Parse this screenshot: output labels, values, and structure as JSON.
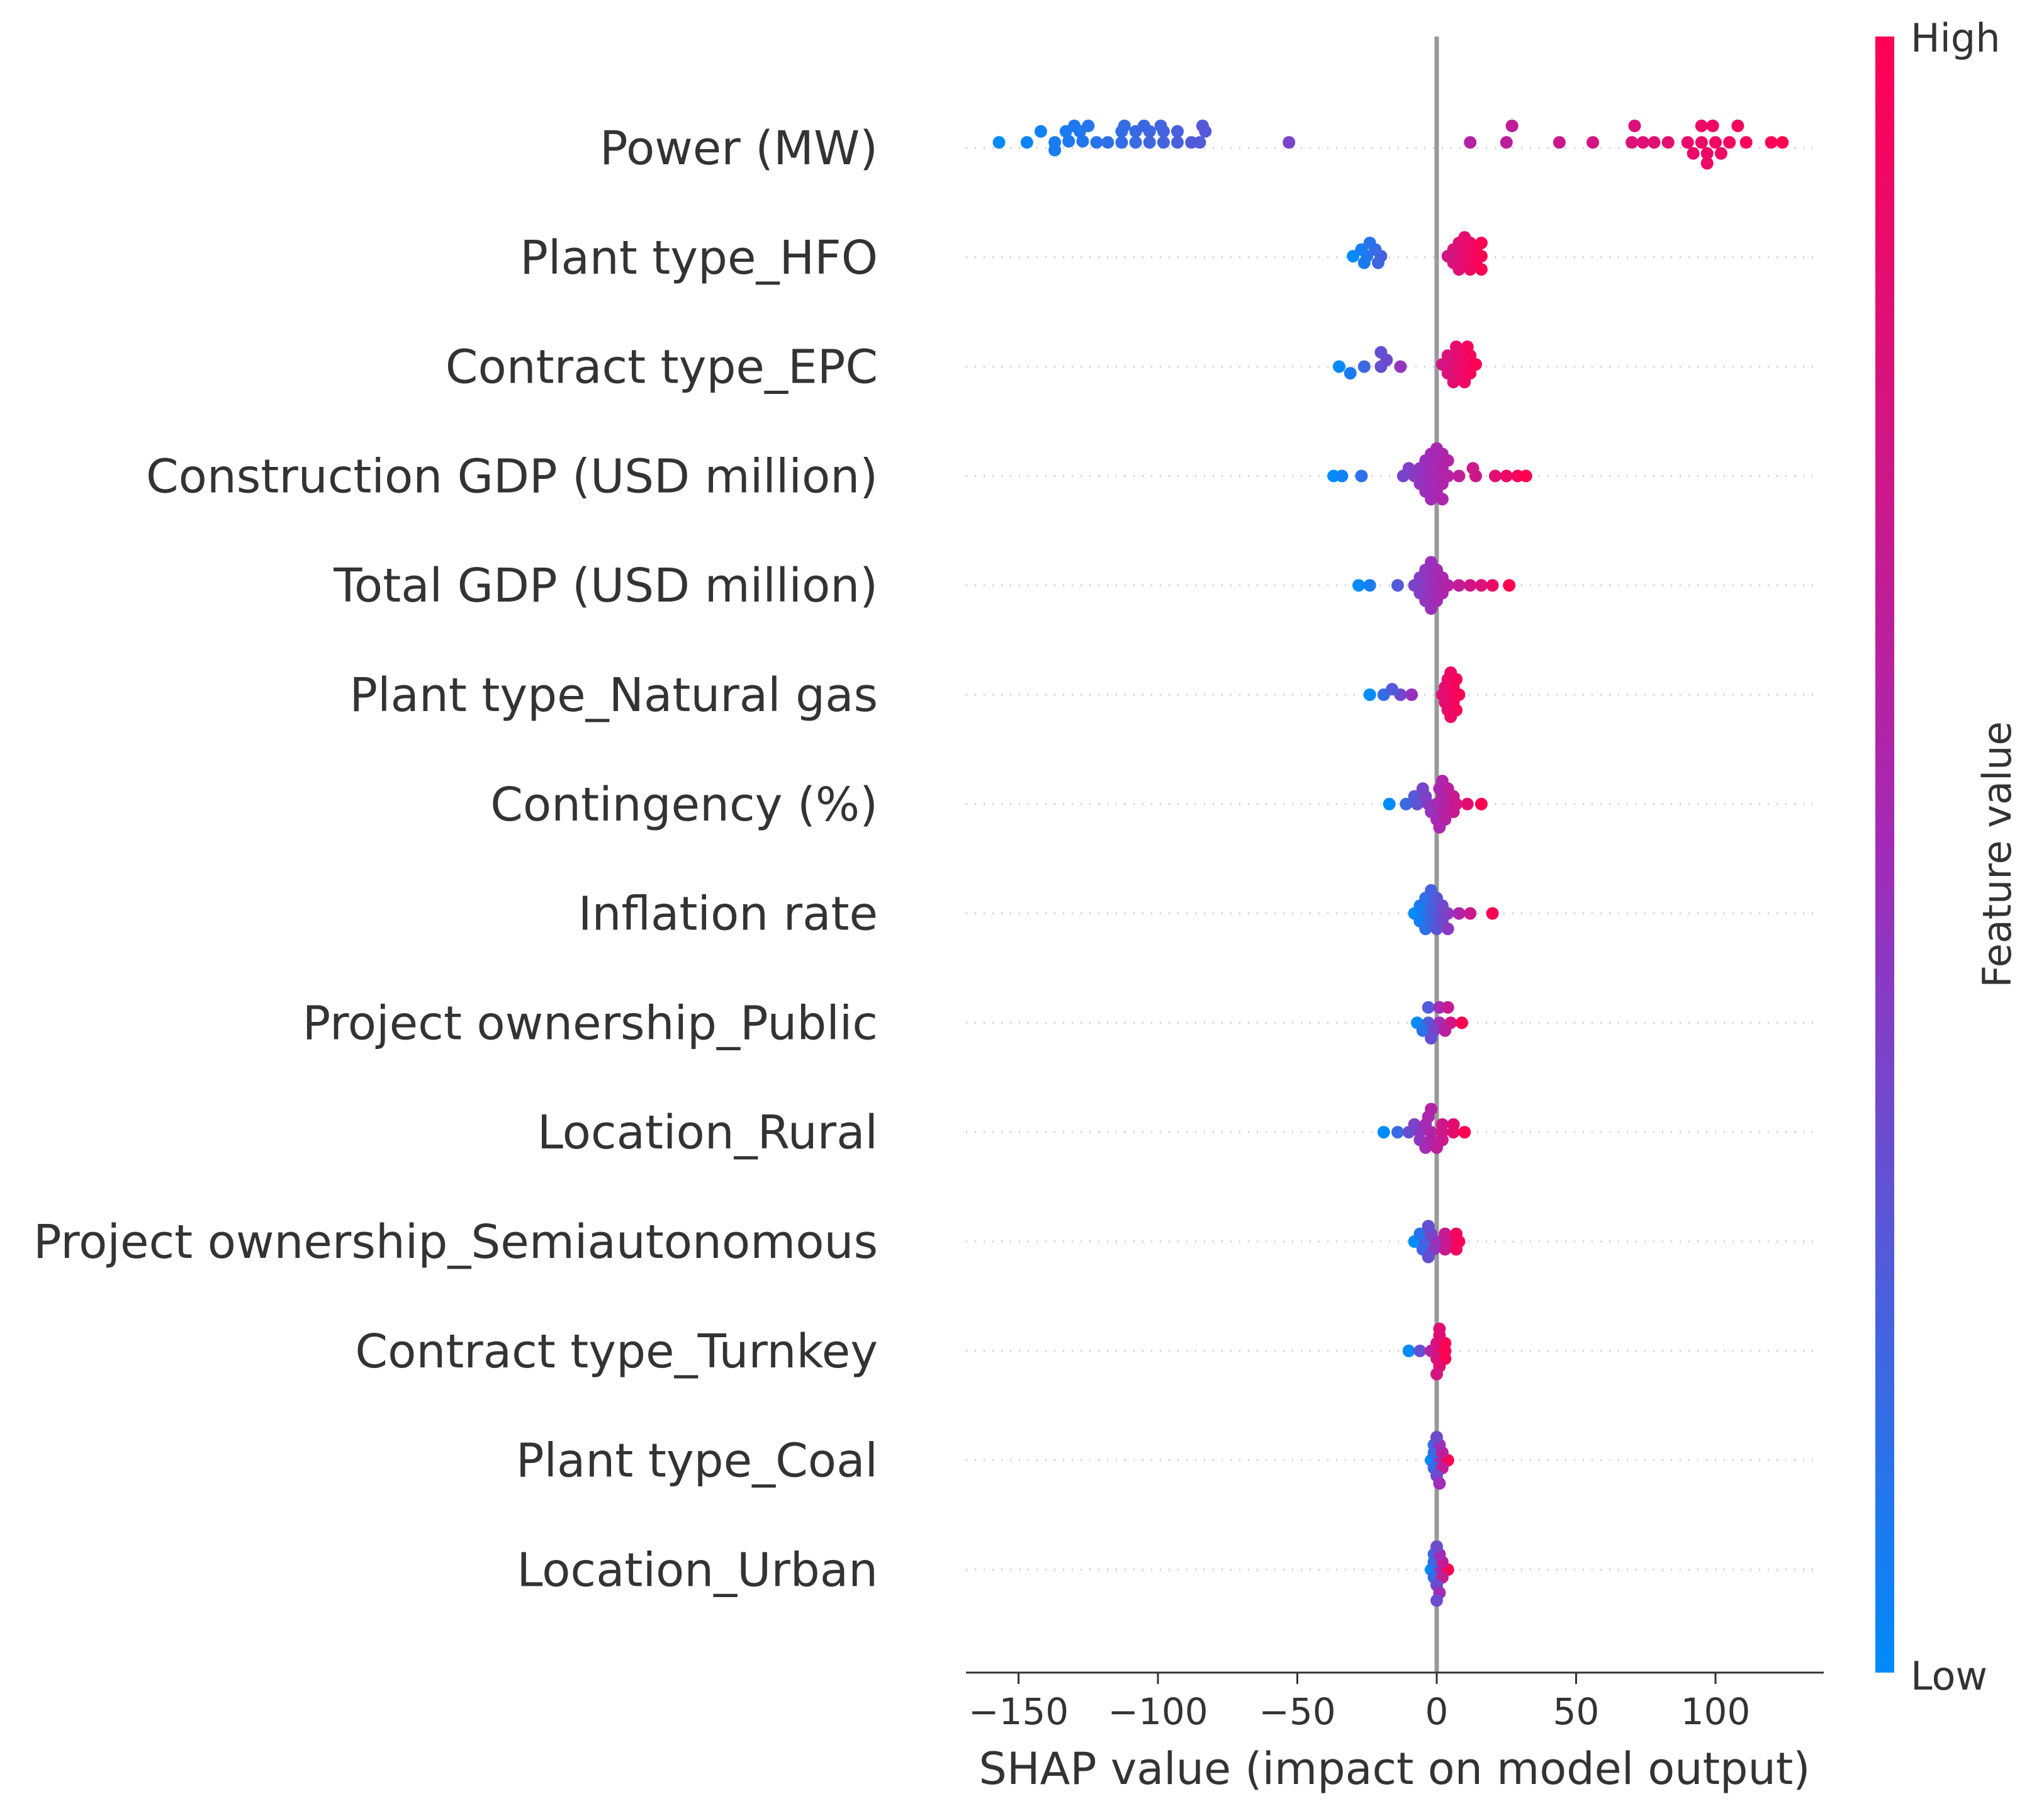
{
  "chart_data": {
    "type": "scatter",
    "subtype": "shap-beeswarm",
    "title": "",
    "xlabel": "SHAP value (impact on model output)",
    "ylabel": "",
    "xlim": [
      -170,
      140
    ],
    "xticks": [
      {
        "value": -150,
        "label": "−150"
      },
      {
        "value": -100,
        "label": "−100"
      },
      {
        "value": -50,
        "label": "−50"
      },
      {
        "value": 0,
        "label": "0"
      },
      {
        "value": 50,
        "label": "50"
      },
      {
        "value": 100,
        "label": "100"
      }
    ],
    "grid": false,
    "colorbar": {
      "title": "Feature value",
      "high_label": "High",
      "low_label": "Low",
      "low_color": "#008bfb",
      "high_color": "#ff0052",
      "mid_color": "#a22bb8"
    },
    "features": [
      {
        "name": "Power (MW)",
        "points": [
          [
            -157,
            0.05
          ],
          [
            -147,
            0.05
          ],
          [
            -137,
            0.05
          ],
          [
            -137,
            -0.02
          ],
          [
            -132,
            0.06
          ],
          [
            -127,
            0.06
          ],
          [
            -122,
            0.05
          ],
          [
            -118,
            0.05
          ],
          [
            -113,
            0.05
          ],
          [
            -108,
            0.05
          ],
          [
            -103,
            0.05
          ],
          [
            -98,
            0.05
          ],
          [
            -93,
            0.05
          ],
          [
            -88,
            0.05
          ],
          [
            -85,
            0.05
          ],
          [
            -142,
            0.15
          ],
          [
            -133,
            0.15
          ],
          [
            -128,
            0.15
          ],
          [
            -113,
            0.15
          ],
          [
            -108,
            0.15
          ],
          [
            -103,
            0.15
          ],
          [
            -98,
            0.15
          ],
          [
            -93,
            0.15
          ],
          [
            -83,
            0.15
          ],
          [
            -130,
            0.2
          ],
          [
            -125,
            0.2
          ],
          [
            -112,
            0.2
          ],
          [
            -105,
            0.2
          ],
          [
            -99,
            0.2
          ],
          [
            -84,
            0.2
          ],
          [
            -53,
            0.05
          ],
          [
            12,
            0.05
          ],
          [
            25,
            0.05
          ],
          [
            27,
            0.2
          ],
          [
            44,
            0.05
          ],
          [
            56,
            0.05
          ],
          [
            70,
            0.05
          ],
          [
            74,
            0.05
          ],
          [
            78,
            0.05
          ],
          [
            83,
            0.05
          ],
          [
            90,
            0.05
          ],
          [
            95,
            0.05
          ],
          [
            100,
            0.05
          ],
          [
            105,
            0.05
          ],
          [
            111,
            0.05
          ],
          [
            120,
            0.05
          ],
          [
            124,
            0.05
          ],
          [
            71,
            0.2
          ],
          [
            95,
            0.2
          ],
          [
            99,
            0.2
          ],
          [
            108,
            0.2
          ],
          [
            92,
            -0.05
          ],
          [
            97,
            -0.05
          ],
          [
            102,
            -0.05
          ],
          [
            97,
            -0.14
          ]
        ]
      },
      {
        "name": "Plant type_HFO",
        "points": [
          [
            -30,
            0.01
          ],
          [
            -25,
            0.01
          ],
          [
            -20,
            0.01
          ],
          [
            -27,
            0.07
          ],
          [
            -22,
            0.07
          ],
          [
            -24,
            0.13
          ],
          [
            -26,
            -0.05
          ],
          [
            -21,
            -0.05
          ],
          [
            4,
            0.01
          ],
          [
            8,
            0.01
          ],
          [
            12,
            0.01
          ],
          [
            16,
            0.01
          ],
          [
            6,
            0.07
          ],
          [
            10,
            0.07
          ],
          [
            14,
            0.07
          ],
          [
            8,
            0.13
          ],
          [
            12,
            0.13
          ],
          [
            16,
            0.13
          ],
          [
            6,
            -0.05
          ],
          [
            10,
            -0.05
          ],
          [
            14,
            -0.05
          ],
          [
            8,
            -0.11
          ],
          [
            12,
            -0.11
          ],
          [
            16,
            -0.11
          ],
          [
            10,
            0.18
          ]
        ]
      },
      {
        "name": "Contract type_EPC",
        "points": [
          [
            -35,
            0.0
          ],
          [
            -26,
            0.0
          ],
          [
            -20,
            0.0
          ],
          [
            -13,
            0.0
          ],
          [
            -18,
            0.06
          ],
          [
            -20,
            0.13
          ],
          [
            -31,
            -0.06
          ],
          [
            2,
            0.02
          ],
          [
            6,
            0.02
          ],
          [
            10,
            0.02
          ],
          [
            14,
            0.02
          ],
          [
            4,
            0.1
          ],
          [
            8,
            0.1
          ],
          [
            12,
            0.1
          ],
          [
            7,
            0.18
          ],
          [
            11,
            0.18
          ],
          [
            4,
            -0.06
          ],
          [
            8,
            -0.06
          ],
          [
            12,
            -0.06
          ],
          [
            6,
            -0.14
          ],
          [
            10,
            -0.14
          ]
        ]
      },
      {
        "name": "Construction GDP (USD million)",
        "points": [
          [
            -37,
            0.0
          ],
          [
            -34,
            0.0
          ],
          [
            -27,
            0.0
          ],
          [
            -12,
            0.0
          ],
          [
            -8,
            0.0
          ],
          [
            -4,
            0.0
          ],
          [
            0,
            0.0
          ],
          [
            4,
            0.0
          ],
          [
            8,
            0.0
          ],
          [
            14,
            0.0
          ],
          [
            21,
            0.0
          ],
          [
            25,
            0.0
          ],
          [
            29,
            0.0
          ],
          [
            32,
            0.0
          ],
          [
            -10,
            0.07
          ],
          [
            -6,
            0.07
          ],
          [
            -2,
            0.07
          ],
          [
            2,
            0.07
          ],
          [
            13,
            0.07
          ],
          [
            -4,
            0.14
          ],
          [
            0,
            0.14
          ],
          [
            4,
            0.14
          ],
          [
            -2,
            0.2
          ],
          [
            2,
            0.2
          ],
          [
            -6,
            -0.07
          ],
          [
            -2,
            -0.07
          ],
          [
            2,
            -0.07
          ],
          [
            -4,
            -0.14
          ],
          [
            0,
            -0.14
          ],
          [
            -2,
            -0.21
          ],
          [
            2,
            -0.21
          ],
          [
            0,
            0.25
          ]
        ]
      },
      {
        "name": "Total GDP (USD million)",
        "points": [
          [
            -28,
            0.0
          ],
          [
            -24,
            0.0
          ],
          [
            -14,
            0.0
          ],
          [
            -8,
            0.0
          ],
          [
            -4,
            0.0
          ],
          [
            0,
            0.0
          ],
          [
            4,
            0.0
          ],
          [
            8,
            0.0
          ],
          [
            12,
            0.0
          ],
          [
            16,
            0.0
          ],
          [
            20,
            0.0
          ],
          [
            26,
            0.0
          ],
          [
            -6,
            0.07
          ],
          [
            -2,
            0.07
          ],
          [
            2,
            0.07
          ],
          [
            -4,
            0.14
          ],
          [
            0,
            0.14
          ],
          [
            -2,
            0.21
          ],
          [
            -6,
            -0.07
          ],
          [
            -2,
            -0.07
          ],
          [
            2,
            -0.07
          ],
          [
            -4,
            -0.14
          ],
          [
            0,
            -0.14
          ],
          [
            -2,
            -0.21
          ]
        ]
      },
      {
        "name": "Plant type_Natural gas",
        "points": [
          [
            -24,
            0.0
          ],
          [
            -19,
            0.0
          ],
          [
            -13,
            0.0
          ],
          [
            -9,
            0.0
          ],
          [
            -16,
            0.05
          ],
          [
            2,
            0.0
          ],
          [
            5,
            0.0
          ],
          [
            8,
            0.0
          ],
          [
            3,
            0.07
          ],
          [
            6,
            0.07
          ],
          [
            4,
            0.14
          ],
          [
            7,
            0.14
          ],
          [
            5,
            0.2
          ],
          [
            3,
            -0.07
          ],
          [
            6,
            -0.07
          ],
          [
            4,
            -0.14
          ],
          [
            7,
            -0.14
          ],
          [
            5,
            -0.2
          ]
        ]
      },
      {
        "name": "Contingency (%)",
        "points": [
          [
            -17,
            0.0
          ],
          [
            -11,
            0.0
          ],
          [
            -7,
            0.0
          ],
          [
            -3,
            0.0
          ],
          [
            0,
            0.0
          ],
          [
            3,
            0.0
          ],
          [
            7,
            0.0
          ],
          [
            11,
            0.0
          ],
          [
            16,
            0.0
          ],
          [
            -8,
            0.07
          ],
          [
            -4,
            0.07
          ],
          [
            2,
            0.07
          ],
          [
            6,
            0.07
          ],
          [
            -5,
            0.14
          ],
          [
            1,
            0.14
          ],
          [
            4,
            0.14
          ],
          [
            2,
            0.21
          ],
          [
            -2,
            -0.07
          ],
          [
            2,
            -0.07
          ],
          [
            6,
            -0.07
          ],
          [
            0,
            -0.14
          ],
          [
            3,
            -0.14
          ],
          [
            1,
            -0.21
          ]
        ]
      },
      {
        "name": "Inflation rate",
        "points": [
          [
            -8,
            0.0
          ],
          [
            -4,
            0.0
          ],
          [
            0,
            0.0
          ],
          [
            4,
            0.0
          ],
          [
            8,
            0.0
          ],
          [
            12,
            0.0
          ],
          [
            20,
            0.0
          ],
          [
            -6,
            0.07
          ],
          [
            -2,
            0.07
          ],
          [
            2,
            0.07
          ],
          [
            -4,
            0.14
          ],
          [
            0,
            0.14
          ],
          [
            -2,
            0.21
          ],
          [
            -6,
            -0.07
          ],
          [
            -2,
            -0.07
          ],
          [
            2,
            -0.07
          ],
          [
            -4,
            -0.14
          ],
          [
            0,
            -0.14
          ],
          [
            4,
            -0.14
          ]
        ]
      },
      {
        "name": "Project ownership_Public",
        "points": [
          [
            -7,
            0.0
          ],
          [
            -3,
            0.0
          ],
          [
            1,
            0.0
          ],
          [
            5,
            0.0
          ],
          [
            9,
            0.0
          ],
          [
            -3,
            0.14
          ],
          [
            1,
            0.14
          ],
          [
            4,
            0.14
          ],
          [
            -5,
            -0.07
          ],
          [
            -1,
            -0.07
          ],
          [
            3,
            -0.07
          ],
          [
            -2,
            -0.14
          ]
        ]
      },
      {
        "name": "Location_Rural",
        "points": [
          [
            -19,
            0.0
          ],
          [
            -14,
            0.0
          ],
          [
            -10,
            0.0
          ],
          [
            -6,
            0.0
          ],
          [
            -2,
            0.0
          ],
          [
            2,
            0.0
          ],
          [
            6,
            0.0
          ],
          [
            10,
            0.0
          ],
          [
            -8,
            0.07
          ],
          [
            -4,
            0.07
          ],
          [
            2,
            0.07
          ],
          [
            6,
            0.07
          ],
          [
            -3,
            0.14
          ],
          [
            -2,
            0.21
          ],
          [
            -6,
            -0.07
          ],
          [
            -2,
            -0.07
          ],
          [
            2,
            -0.07
          ],
          [
            -4,
            -0.14
          ],
          [
            0,
            -0.14
          ]
        ]
      },
      {
        "name": "Project ownership_Semiautonomous",
        "points": [
          [
            -8,
            0.0
          ],
          [
            -4,
            0.0
          ],
          [
            0,
            0.0
          ],
          [
            4,
            0.0
          ],
          [
            8,
            0.0
          ],
          [
            -6,
            0.07
          ],
          [
            -2,
            0.07
          ],
          [
            3,
            0.07
          ],
          [
            7,
            0.07
          ],
          [
            -3,
            0.14
          ],
          [
            -5,
            -0.07
          ],
          [
            -1,
            -0.07
          ],
          [
            3,
            -0.07
          ],
          [
            7,
            -0.07
          ],
          [
            -3,
            -0.14
          ]
        ]
      },
      {
        "name": "Contract type_Turnkey",
        "points": [
          [
            -10,
            0.0
          ],
          [
            -6,
            0.0
          ],
          [
            -2,
            0.0
          ],
          [
            1,
            0.0
          ],
          [
            3,
            0.0
          ],
          [
            0,
            0.07
          ],
          [
            3,
            0.07
          ],
          [
            1,
            0.14
          ],
          [
            0,
            -0.07
          ],
          [
            3,
            -0.07
          ],
          [
            1,
            -0.14
          ],
          [
            0,
            -0.21
          ],
          [
            1,
            0.2
          ]
        ]
      },
      {
        "name": "Plant type_Coal",
        "points": [
          [
            -2,
            0.0
          ],
          [
            1,
            0.0
          ],
          [
            4,
            0.0
          ],
          [
            -1,
            0.07
          ],
          [
            2,
            0.07
          ],
          [
            -1,
            0.14
          ],
          [
            1,
            0.14
          ],
          [
            0,
            0.21
          ],
          [
            -1,
            -0.07
          ],
          [
            2,
            -0.07
          ],
          [
            0,
            -0.14
          ],
          [
            1,
            -0.21
          ]
        ]
      },
      {
        "name": "Location_Urban",
        "points": [
          [
            -2,
            0.0
          ],
          [
            1,
            0.0
          ],
          [
            4,
            0.0
          ],
          [
            -1,
            0.07
          ],
          [
            2,
            0.07
          ],
          [
            -1,
            0.14
          ],
          [
            1,
            0.14
          ],
          [
            0,
            0.21
          ],
          [
            -1,
            -0.07
          ],
          [
            2,
            -0.07
          ],
          [
            0,
            -0.14
          ],
          [
            1,
            -0.21
          ],
          [
            0,
            -0.28
          ]
        ]
      }
    ]
  }
}
